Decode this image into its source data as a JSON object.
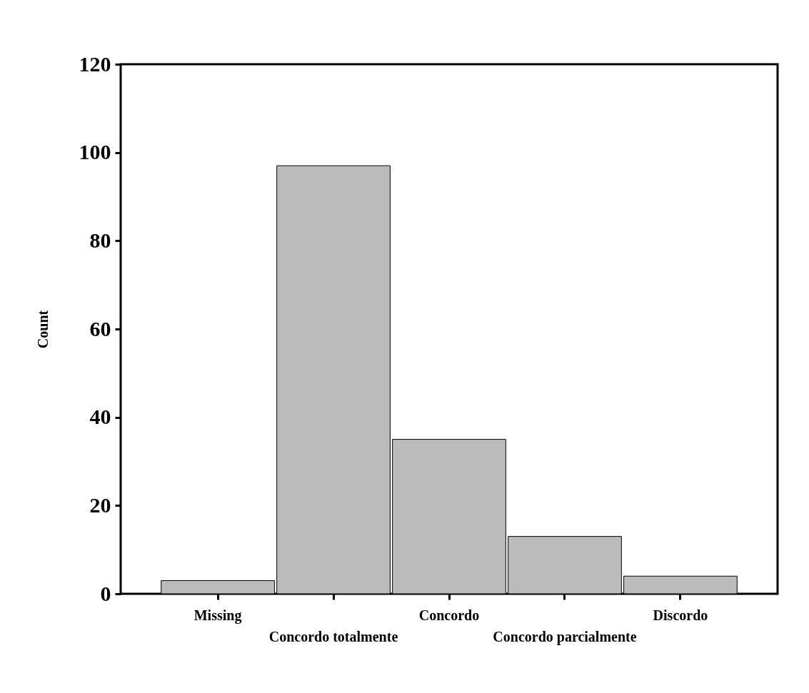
{
  "chart_data": {
    "type": "bar",
    "ylabel": "Count",
    "categories": [
      "Missing",
      "Concordo totalmente",
      "Concordo",
      "Concordo  parcialmente",
      "Discordo"
    ],
    "values": [
      3,
      97,
      35,
      13,
      4
    ],
    "color": "#bbbbbb",
    "ylim": [
      0,
      120
    ],
    "yticks": [
      0,
      20,
      40,
      60,
      80,
      100,
      120
    ],
    "grid": false
  }
}
